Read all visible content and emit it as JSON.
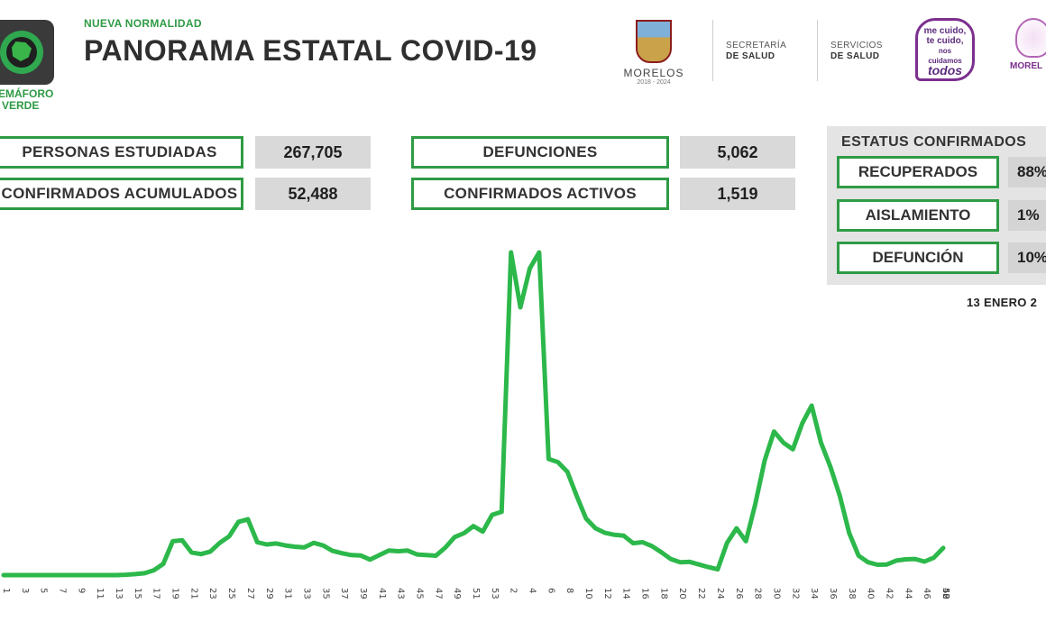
{
  "header": {
    "subtitle": "NUEVA NORMALIDAD",
    "title": "PANORAMA ESTATAL COVID-19",
    "semaforo_label_line1": "SEMÁFORO",
    "semaforo_label_line2": "VERDE",
    "logo_morelos": {
      "name": "MORELOS",
      "years": "2018 - 2024"
    },
    "secretaria": {
      "line1": "SECRETARÍA",
      "line2": "DE SALUD"
    },
    "servicios": {
      "line1": "SERVICIOS",
      "line2": "DE SALUD"
    },
    "campaign": {
      "line1": "me cuido,",
      "line2": "te cuido,",
      "line3": "nos cuidamos",
      "line4": "todos"
    },
    "logo_flower_name": "MOREL"
  },
  "stats": [
    {
      "label": "PERSONAS ESTUDIADAS",
      "value": "267,705"
    },
    {
      "label": "CONFIRMADOS ACUMULADOS",
      "value": "52,488"
    },
    {
      "label": "DEFUNCIONES",
      "value": "5,062"
    },
    {
      "label": "CONFIRMADOS ACTIVOS",
      "value": "1,519"
    }
  ],
  "status": {
    "title": "ESTATUS CONFIRMADOS",
    "items": [
      {
        "label": "RECUPERADOS",
        "value": "88%"
      },
      {
        "label": "AISLAMIENTO",
        "value": "1%"
      },
      {
        "label": "DEFUNCIÓN",
        "value": "10%"
      }
    ]
  },
  "date": "13 ENERO 2",
  "colors": {
    "accent": "#2e9b45",
    "line": "#2cb84a"
  },
  "chart_data": {
    "type": "line",
    "title": "",
    "xlabel": "",
    "ylabel": "",
    "grid": false,
    "x_tick_labels": [
      "1",
      "3",
      "5",
      "7",
      "9",
      "11",
      "13",
      "15",
      "17",
      "19",
      "21",
      "23",
      "25",
      "27",
      "29",
      "31",
      "33",
      "35",
      "37",
      "39",
      "41",
      "43",
      "45",
      "47",
      "49",
      "51",
      "53",
      "2",
      "4",
      "6",
      "8",
      "10",
      "12",
      "14",
      "16",
      "18",
      "20",
      "22",
      "24",
      "26",
      "28",
      "30",
      "32",
      "34",
      "36",
      "38",
      "40",
      "42",
      "44",
      "46",
      "48",
      "50",
      "52"
    ],
    "ylim": [
      0,
      100
    ],
    "series": [
      {
        "values": [
          0,
          0,
          0,
          0,
          0,
          0,
          0,
          0,
          0,
          0,
          0,
          0,
          0,
          0.1,
          0.3,
          0.6,
          1.5,
          3.5,
          10.5,
          10.8,
          7,
          6.5,
          7.3,
          10,
          12,
          16.5,
          17.3,
          10.2,
          9.5,
          9.8,
          9.2,
          8.8,
          8.6,
          10,
          9.2,
          7.5,
          6.8,
          6.2,
          6.1,
          4.8,
          6.2,
          7.6,
          7.4,
          7.6,
          6.4,
          6.2,
          6,
          8.5,
          11.8,
          13,
          15.2,
          13.5,
          18.7,
          19.6,
          100,
          83,
          95,
          100,
          36,
          35,
          32,
          24.5,
          17.5,
          14.5,
          13.1,
          12.5,
          12.2,
          9.9,
          10.2,
          9,
          7.1,
          5,
          4,
          4.1,
          3.3,
          2.5,
          1.8,
          10,
          14.5,
          10.5,
          22,
          35.5,
          44.5,
          41,
          39,
          47,
          52.5,
          41,
          33.5,
          24.5,
          13,
          6,
          4,
          3.2,
          3.3,
          4.5,
          4.9,
          5,
          4.2,
          5.4,
          8.4
        ]
      }
    ]
  }
}
